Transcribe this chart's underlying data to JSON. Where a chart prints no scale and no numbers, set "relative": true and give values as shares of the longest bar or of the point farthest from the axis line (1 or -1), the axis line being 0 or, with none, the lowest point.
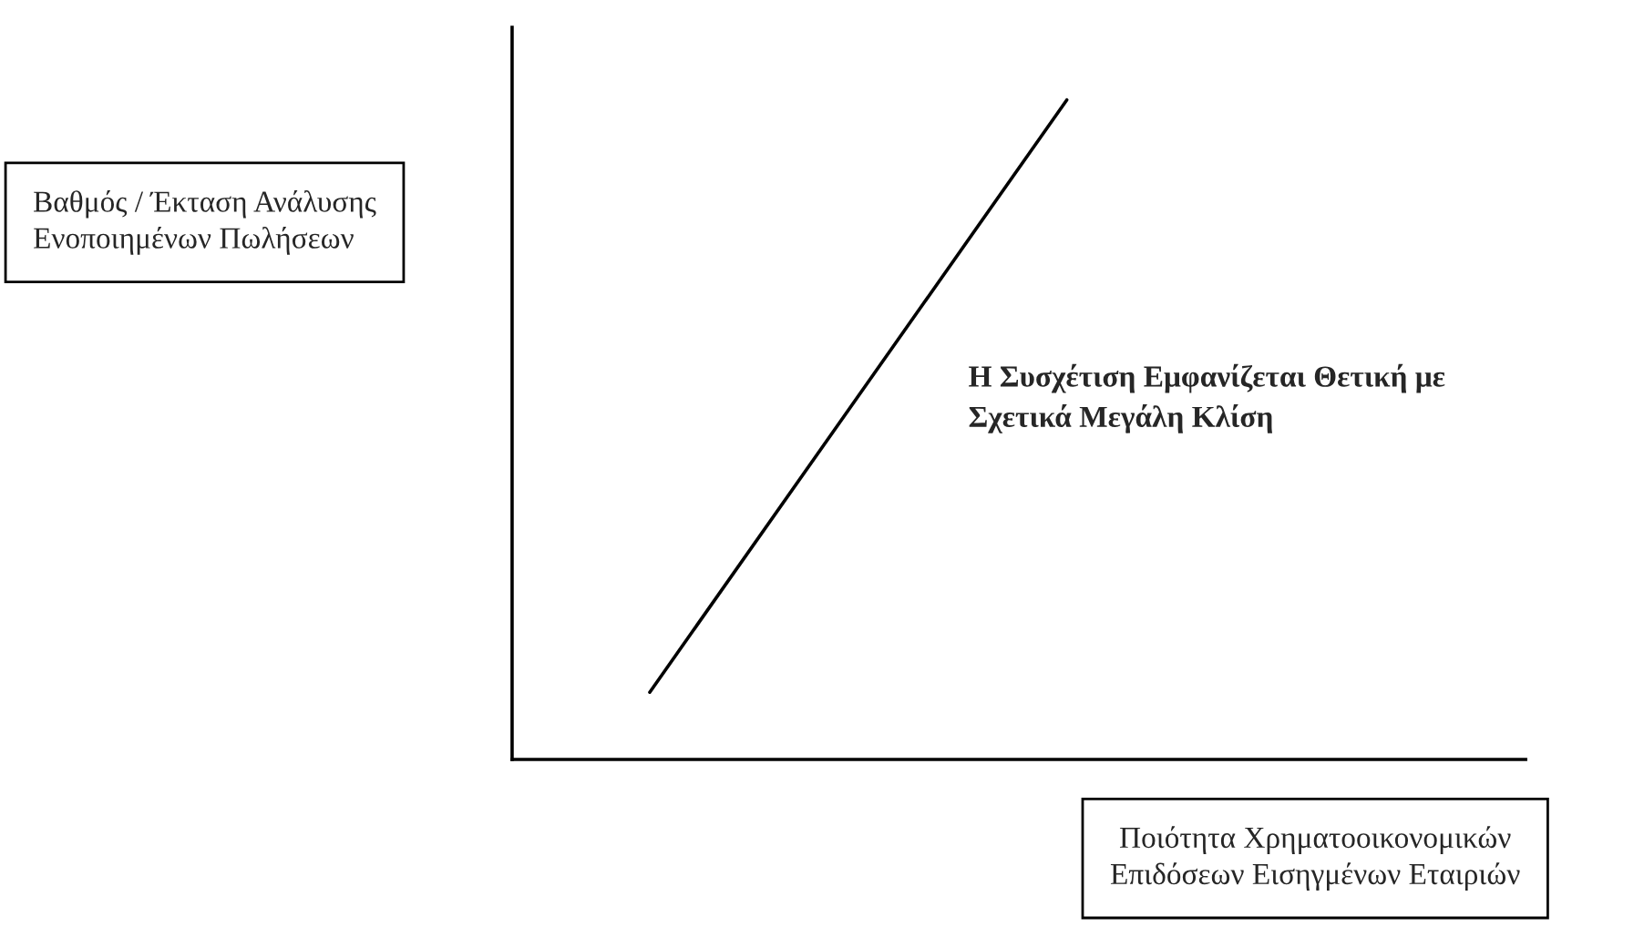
{
  "chart_data": {
    "type": "line",
    "relative": true,
    "categories": [
      null,
      null
    ],
    "series": [
      {
        "color": "#000000",
        "values": [
          0.102,
          1
        ]
      }
    ],
    "ylabel": "Βαθμός / Έκταση Ανάλυσης\nΕνοποιημένων Πωλήσεων",
    "xlabel": "Ποιότητα Χρηματοοικονομικών\nΕπιδόσεων Εισηγμένων Εταιριών",
    "annotations": [
      "Η Συσχέτιση Εμφανίζεται Θετική με\nΣχετικά Μεγάλη Κλίση"
    ],
    "marker": "none",
    "line_style": "solid"
  }
}
